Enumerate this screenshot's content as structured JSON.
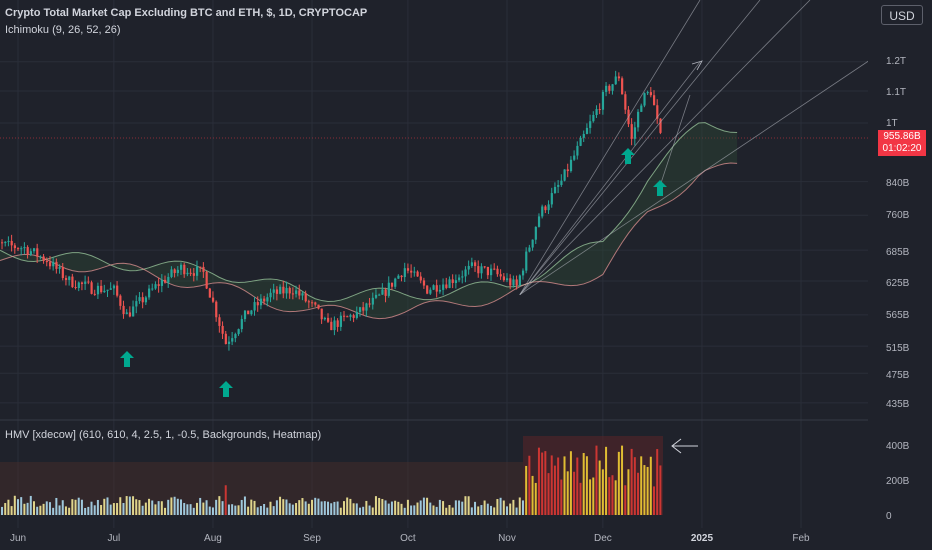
{
  "header": {
    "title": "Crypto Total Market Cap Excluding BTC and ETH, $, 1D, CRYPTOCAP",
    "indicator_1": "Ichimoku (9, 26, 52, 26)",
    "indicator_2": "HMV [xdecow] (610, 610, 4, 2.5, 1, -0.5, Backgrounds, Heatmap)",
    "currency_button": "USD"
  },
  "price_label": {
    "value": "955.86B",
    "countdown": "01:02:20"
  },
  "colors": {
    "background": "#1f222b",
    "up_candle": "#26a69a",
    "down_candle": "#ef5350",
    "cloud_bull": "#2e4a3a",
    "cloud_bear": "#4a2e33",
    "arrow": "#00a88f",
    "price_label": "#f23645"
  },
  "chart_data": {
    "type": "candlestick",
    "title": "Crypto Total Market Cap Excluding BTC and ETH, $, 1D, CRYPTOCAP",
    "y_scale": "log",
    "y_ticks": [
      "1.2T",
      "1.1T",
      "1T",
      "840B",
      "760B",
      "685B",
      "625B",
      "565B",
      "515B",
      "475B",
      "435B"
    ],
    "x_ticks": [
      "Jun",
      "Jul",
      "Aug",
      "Sep",
      "Oct",
      "Nov",
      "Dec",
      "2025",
      "Feb"
    ],
    "last_price": "955.86B",
    "price_path": [
      [
        "2024-05-21",
        700
      ],
      [
        "2024-06-03",
        690
      ],
      [
        "2024-06-10",
        665
      ],
      [
        "2024-06-17",
        625
      ],
      [
        "2024-06-24",
        612
      ],
      [
        "2024-07-01",
        608
      ],
      [
        "2024-07-05",
        565
      ],
      [
        "2024-07-15",
        620
      ],
      [
        "2024-07-22",
        650
      ],
      [
        "2024-07-29",
        640
      ],
      [
        "2024-08-05",
        520
      ],
      [
        "2024-08-12",
        570
      ],
      [
        "2024-08-19",
        600
      ],
      [
        "2024-08-26",
        610
      ],
      [
        "2024-09-02",
        575
      ],
      [
        "2024-09-06",
        545
      ],
      [
        "2024-09-16",
        570
      ],
      [
        "2024-09-23",
        600
      ],
      [
        "2024-09-30",
        650
      ],
      [
        "2024-10-07",
        610
      ],
      [
        "2024-10-14",
        625
      ],
      [
        "2024-10-21",
        650
      ],
      [
        "2024-10-28",
        640
      ],
      [
        "2024-11-04",
        615
      ],
      [
        "2024-11-11",
        760
      ],
      [
        "2024-11-18",
        840
      ],
      [
        "2024-11-25",
        960
      ],
      [
        "2024-12-02",
        1100
      ],
      [
        "2024-12-06",
        1150
      ],
      [
        "2024-12-10",
        950
      ],
      [
        "2024-12-13",
        1070
      ],
      [
        "2024-12-16",
        1100
      ],
      [
        "2024-12-19",
        955.86
      ]
    ],
    "ichimoku_cloud_top": [
      [
        "2024-05-21",
        685
      ],
      [
        "2024-07-01",
        660
      ],
      [
        "2024-08-01",
        645
      ],
      [
        "2024-09-01",
        600
      ],
      [
        "2024-10-01",
        600
      ],
      [
        "2024-11-01",
        615
      ],
      [
        "2024-12-01",
        700
      ],
      [
        "2024-12-15",
        850
      ],
      [
        "2025-01-01",
        1000
      ],
      [
        "2025-01-13",
        990
      ]
    ],
    "ichimoku_cloud_bottom": [
      [
        "2024-05-21",
        670
      ],
      [
        "2024-07-01",
        650
      ],
      [
        "2024-08-01",
        615
      ],
      [
        "2024-09-01",
        570
      ],
      [
        "2024-10-01",
        570
      ],
      [
        "2024-11-01",
        600
      ],
      [
        "2024-12-01",
        640
      ],
      [
        "2024-12-15",
        760
      ],
      [
        "2025-01-01",
        870
      ],
      [
        "2025-01-13",
        870
      ]
    ],
    "hmv_panel": {
      "y_ticks": [
        "400B",
        "200B",
        "0"
      ],
      "series": "daily volume heatmap",
      "highlight_period": "November–December 2024"
    }
  }
}
